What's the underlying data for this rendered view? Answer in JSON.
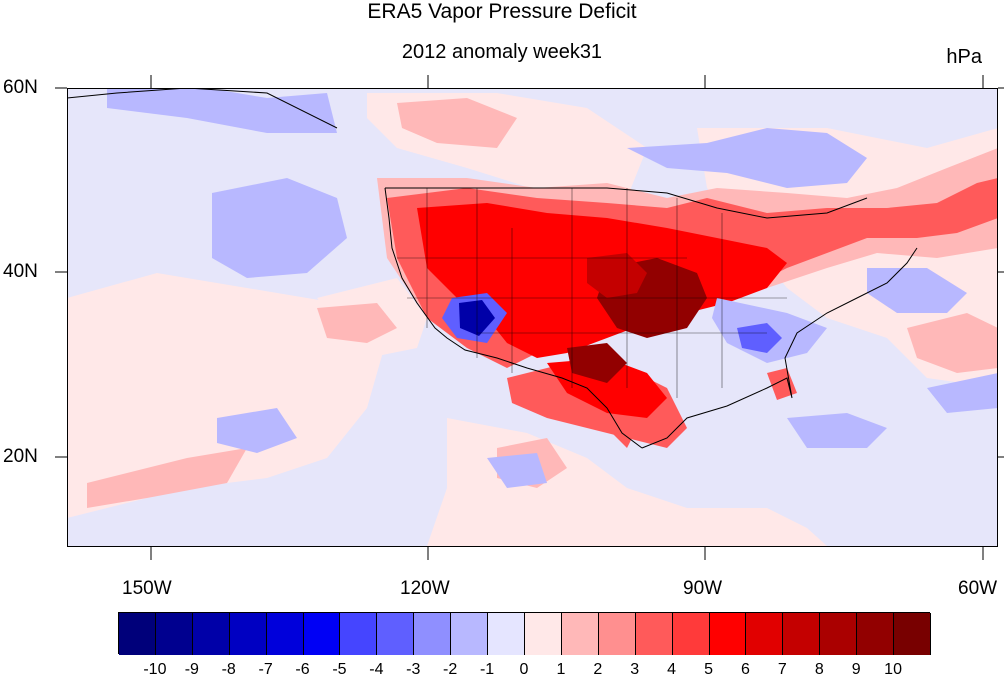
{
  "title": "ERA5 Vapor Pressure Deficit",
  "subtitle": "2012 anomaly week31",
  "units": "hPa",
  "lat_labels": [
    "60N",
    "40N",
    "20N"
  ],
  "lon_labels": [
    "150W",
    "120W",
    "90W",
    "60W"
  ],
  "colorbar": {
    "labels": [
      "-10",
      "-9",
      "-8",
      "-7",
      "-6",
      "-5",
      "-4",
      "-3",
      "-2",
      "-1",
      "0",
      "1",
      "2",
      "3",
      "4",
      "5",
      "6",
      "7",
      "8",
      "9",
      "10"
    ],
    "colors": [
      "#00007a",
      "#00008f",
      "#0000a8",
      "#0000c2",
      "#0000db",
      "#0000f5",
      "#4545ff",
      "#5f5fff",
      "#8f8fff",
      "#b8b8ff",
      "#e5e5ff",
      "#ffe8e8",
      "#ffb8b8",
      "#ff8f8f",
      "#ff5a5a",
      "#ff3a3a",
      "#ff0000",
      "#e10000",
      "#c40000",
      "#aa0000",
      "#920000",
      "#780000"
    ]
  },
  "map": {
    "extent": {
      "lon_min": -159,
      "lon_max": -60,
      "lat_min": 10,
      "lat_max": 60
    },
    "background_color": "#e6e6fa",
    "anomaly_field": "2012 Great Plains / Midwest drought: strong positive VPD anomaly over central US, negative over Southwest and Southeast"
  }
}
